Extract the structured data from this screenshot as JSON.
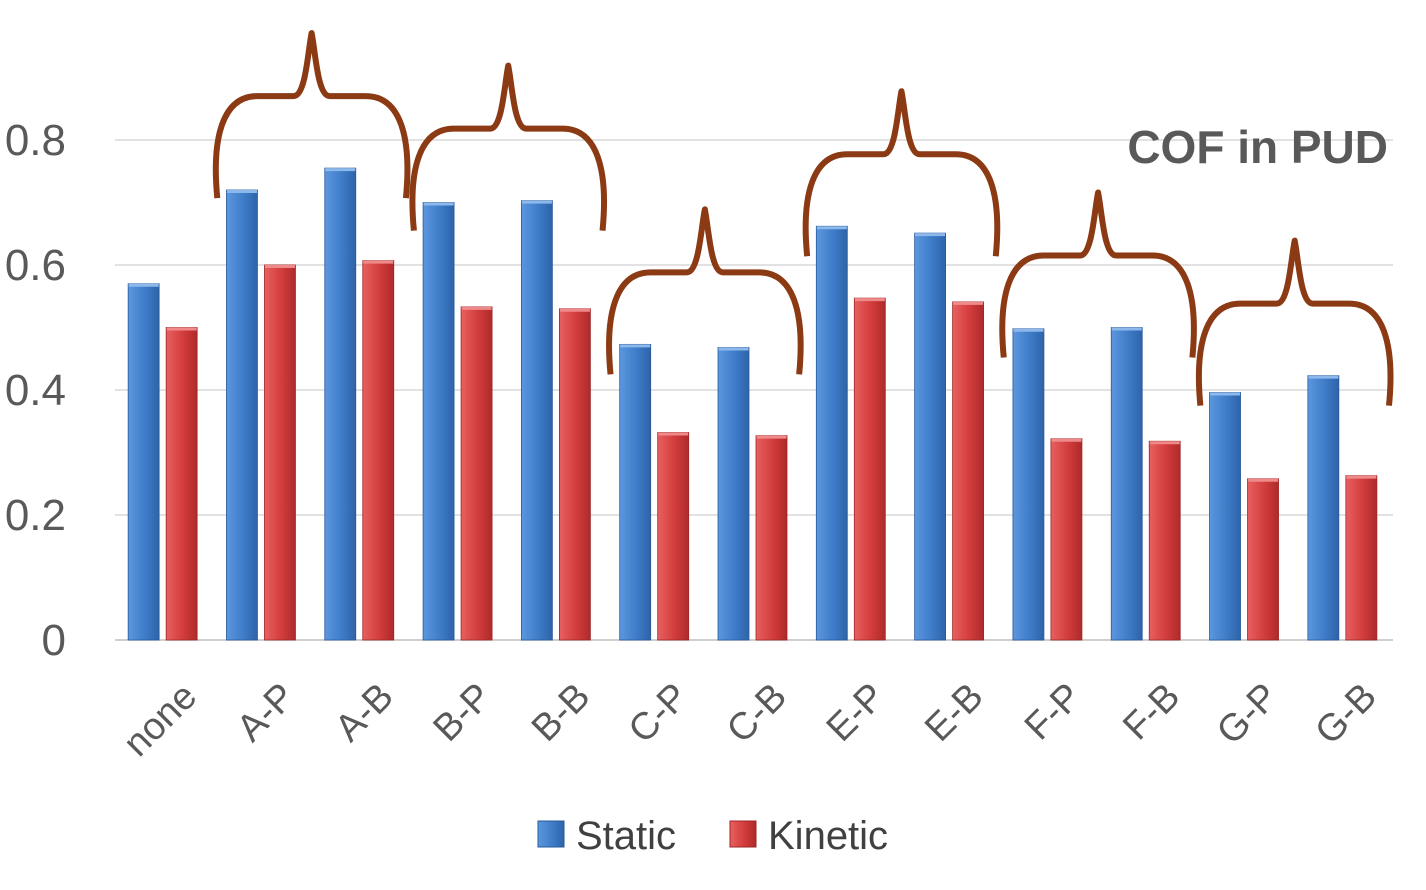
{
  "chart_data": {
    "type": "bar",
    "title": "COF in PUD",
    "xlabel": "",
    "ylabel": "",
    "categories": [
      "none",
      "A-P",
      "A-B",
      "B-P",
      "B-B",
      "C-P",
      "C-B",
      "E-P",
      "E-B",
      "F-P",
      "F-B",
      "G-P",
      "G-B"
    ],
    "series": [
      {
        "name": "Static",
        "color": "#3E7CC9",
        "values": [
          0.57,
          0.72,
          0.755,
          0.7,
          0.703,
          0.473,
          0.468,
          0.662,
          0.651,
          0.498,
          0.5,
          0.396,
          0.423
        ]
      },
      {
        "name": "Kinetic",
        "color": "#D23C3C",
        "values": [
          0.5,
          0.6,
          0.607,
          0.533,
          0.53,
          0.332,
          0.327,
          0.547,
          0.541,
          0.322,
          0.318,
          0.258,
          0.263
        ]
      }
    ],
    "ylim": [
      0,
      0.8
    ],
    "yticks": [
      "0",
      "0.2",
      "0.4",
      "0.6",
      "0.8"
    ],
    "grid": true,
    "legend_position": "bottom",
    "annotations": {
      "type": "curly-brace",
      "color": "#8B3A14",
      "groups": [
        [
          "A-P",
          "A-B"
        ],
        [
          "B-P",
          "B-B"
        ],
        [
          "C-P",
          "C-B"
        ],
        [
          "E-P",
          "E-B"
        ],
        [
          "F-P",
          "F-B"
        ],
        [
          "G-P",
          "G-B"
        ]
      ]
    }
  }
}
